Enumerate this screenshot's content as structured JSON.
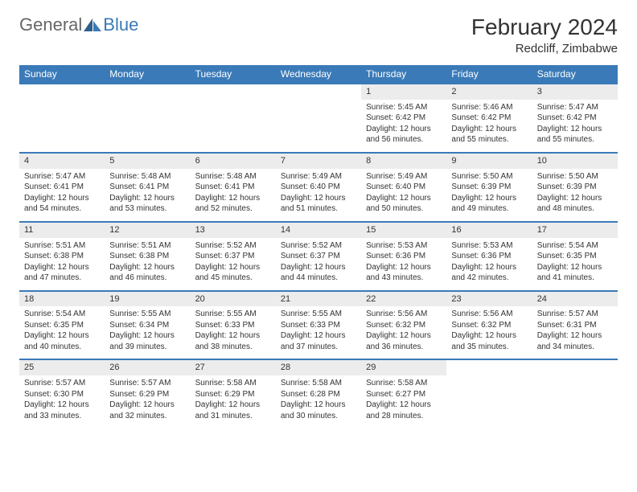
{
  "logo": {
    "general": "General",
    "blue": "Blue"
  },
  "title": "February 2024",
  "location": "Redcliff, Zimbabwe",
  "colors": {
    "header_bg": "#3a7ab8",
    "daynum_bg": "#ececec",
    "text": "#333333",
    "logo_gray": "#666666",
    "logo_blue": "#3a7ab8"
  },
  "day_names": [
    "Sunday",
    "Monday",
    "Tuesday",
    "Wednesday",
    "Thursday",
    "Friday",
    "Saturday"
  ],
  "weeks": [
    [
      null,
      null,
      null,
      null,
      {
        "n": "1",
        "sr": "Sunrise: 5:45 AM",
        "ss": "Sunset: 6:42 PM",
        "d1": "Daylight: 12 hours",
        "d2": "and 56 minutes."
      },
      {
        "n": "2",
        "sr": "Sunrise: 5:46 AM",
        "ss": "Sunset: 6:42 PM",
        "d1": "Daylight: 12 hours",
        "d2": "and 55 minutes."
      },
      {
        "n": "3",
        "sr": "Sunrise: 5:47 AM",
        "ss": "Sunset: 6:42 PM",
        "d1": "Daylight: 12 hours",
        "d2": "and 55 minutes."
      }
    ],
    [
      {
        "n": "4",
        "sr": "Sunrise: 5:47 AM",
        "ss": "Sunset: 6:41 PM",
        "d1": "Daylight: 12 hours",
        "d2": "and 54 minutes."
      },
      {
        "n": "5",
        "sr": "Sunrise: 5:48 AM",
        "ss": "Sunset: 6:41 PM",
        "d1": "Daylight: 12 hours",
        "d2": "and 53 minutes."
      },
      {
        "n": "6",
        "sr": "Sunrise: 5:48 AM",
        "ss": "Sunset: 6:41 PM",
        "d1": "Daylight: 12 hours",
        "d2": "and 52 minutes."
      },
      {
        "n": "7",
        "sr": "Sunrise: 5:49 AM",
        "ss": "Sunset: 6:40 PM",
        "d1": "Daylight: 12 hours",
        "d2": "and 51 minutes."
      },
      {
        "n": "8",
        "sr": "Sunrise: 5:49 AM",
        "ss": "Sunset: 6:40 PM",
        "d1": "Daylight: 12 hours",
        "d2": "and 50 minutes."
      },
      {
        "n": "9",
        "sr": "Sunrise: 5:50 AM",
        "ss": "Sunset: 6:39 PM",
        "d1": "Daylight: 12 hours",
        "d2": "and 49 minutes."
      },
      {
        "n": "10",
        "sr": "Sunrise: 5:50 AM",
        "ss": "Sunset: 6:39 PM",
        "d1": "Daylight: 12 hours",
        "d2": "and 48 minutes."
      }
    ],
    [
      {
        "n": "11",
        "sr": "Sunrise: 5:51 AM",
        "ss": "Sunset: 6:38 PM",
        "d1": "Daylight: 12 hours",
        "d2": "and 47 minutes."
      },
      {
        "n": "12",
        "sr": "Sunrise: 5:51 AM",
        "ss": "Sunset: 6:38 PM",
        "d1": "Daylight: 12 hours",
        "d2": "and 46 minutes."
      },
      {
        "n": "13",
        "sr": "Sunrise: 5:52 AM",
        "ss": "Sunset: 6:37 PM",
        "d1": "Daylight: 12 hours",
        "d2": "and 45 minutes."
      },
      {
        "n": "14",
        "sr": "Sunrise: 5:52 AM",
        "ss": "Sunset: 6:37 PM",
        "d1": "Daylight: 12 hours",
        "d2": "and 44 minutes."
      },
      {
        "n": "15",
        "sr": "Sunrise: 5:53 AM",
        "ss": "Sunset: 6:36 PM",
        "d1": "Daylight: 12 hours",
        "d2": "and 43 minutes."
      },
      {
        "n": "16",
        "sr": "Sunrise: 5:53 AM",
        "ss": "Sunset: 6:36 PM",
        "d1": "Daylight: 12 hours",
        "d2": "and 42 minutes."
      },
      {
        "n": "17",
        "sr": "Sunrise: 5:54 AM",
        "ss": "Sunset: 6:35 PM",
        "d1": "Daylight: 12 hours",
        "d2": "and 41 minutes."
      }
    ],
    [
      {
        "n": "18",
        "sr": "Sunrise: 5:54 AM",
        "ss": "Sunset: 6:35 PM",
        "d1": "Daylight: 12 hours",
        "d2": "and 40 minutes."
      },
      {
        "n": "19",
        "sr": "Sunrise: 5:55 AM",
        "ss": "Sunset: 6:34 PM",
        "d1": "Daylight: 12 hours",
        "d2": "and 39 minutes."
      },
      {
        "n": "20",
        "sr": "Sunrise: 5:55 AM",
        "ss": "Sunset: 6:33 PM",
        "d1": "Daylight: 12 hours",
        "d2": "and 38 minutes."
      },
      {
        "n": "21",
        "sr": "Sunrise: 5:55 AM",
        "ss": "Sunset: 6:33 PM",
        "d1": "Daylight: 12 hours",
        "d2": "and 37 minutes."
      },
      {
        "n": "22",
        "sr": "Sunrise: 5:56 AM",
        "ss": "Sunset: 6:32 PM",
        "d1": "Daylight: 12 hours",
        "d2": "and 36 minutes."
      },
      {
        "n": "23",
        "sr": "Sunrise: 5:56 AM",
        "ss": "Sunset: 6:32 PM",
        "d1": "Daylight: 12 hours",
        "d2": "and 35 minutes."
      },
      {
        "n": "24",
        "sr": "Sunrise: 5:57 AM",
        "ss": "Sunset: 6:31 PM",
        "d1": "Daylight: 12 hours",
        "d2": "and 34 minutes."
      }
    ],
    [
      {
        "n": "25",
        "sr": "Sunrise: 5:57 AM",
        "ss": "Sunset: 6:30 PM",
        "d1": "Daylight: 12 hours",
        "d2": "and 33 minutes."
      },
      {
        "n": "26",
        "sr": "Sunrise: 5:57 AM",
        "ss": "Sunset: 6:29 PM",
        "d1": "Daylight: 12 hours",
        "d2": "and 32 minutes."
      },
      {
        "n": "27",
        "sr": "Sunrise: 5:58 AM",
        "ss": "Sunset: 6:29 PM",
        "d1": "Daylight: 12 hours",
        "d2": "and 31 minutes."
      },
      {
        "n": "28",
        "sr": "Sunrise: 5:58 AM",
        "ss": "Sunset: 6:28 PM",
        "d1": "Daylight: 12 hours",
        "d2": "and 30 minutes."
      },
      {
        "n": "29",
        "sr": "Sunrise: 5:58 AM",
        "ss": "Sunset: 6:27 PM",
        "d1": "Daylight: 12 hours",
        "d2": "and 28 minutes."
      },
      null,
      null
    ]
  ]
}
